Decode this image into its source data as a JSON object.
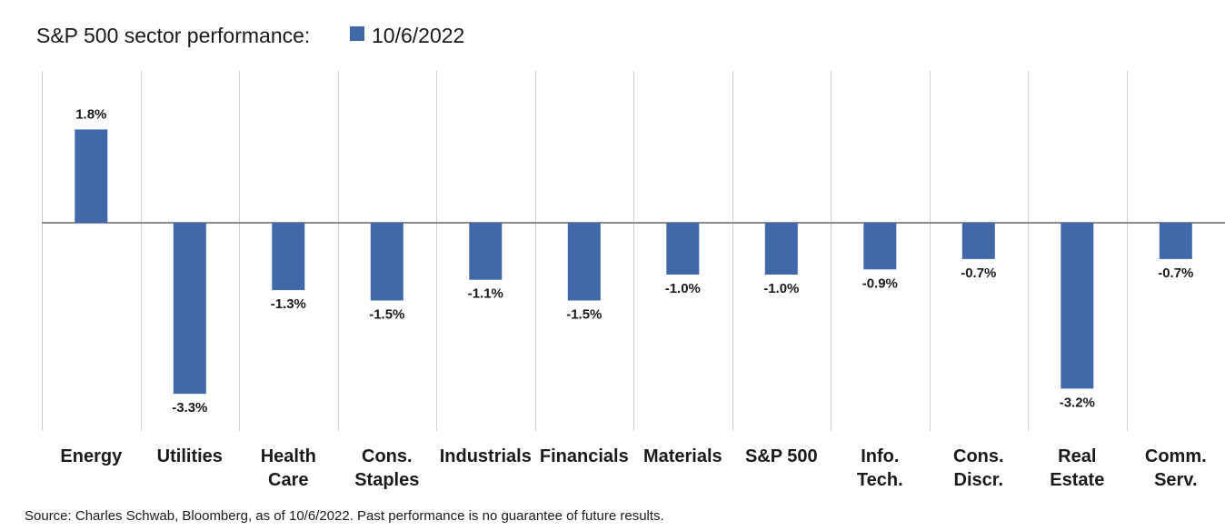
{
  "chart_data": {
    "type": "bar",
    "title": "S&P 500 sector performance:",
    "legend": {
      "label": "10/6/2022",
      "position": "top"
    },
    "series": [
      {
        "name": "10/6/2022",
        "color": "#4169A9",
        "values": [
          1.8,
          -3.3,
          -1.3,
          -1.5,
          -1.1,
          -1.5,
          -1.0,
          -1.0,
          -0.9,
          -0.7,
          -3.2,
          -0.7
        ]
      }
    ],
    "categories": [
      [
        "Energy"
      ],
      [
        "Utilities"
      ],
      [
        "Health",
        "Care"
      ],
      [
        "Cons.",
        "Staples"
      ],
      [
        "Industrials"
      ],
      [
        "Financials"
      ],
      [
        "Materials"
      ],
      [
        "S&P 500"
      ],
      [
        "Info.",
        "Tech."
      ],
      [
        "Cons.",
        "Discr."
      ],
      [
        "Real",
        "Estate"
      ],
      [
        "Comm.",
        "Serv."
      ]
    ],
    "data_labels": [
      "1.8%",
      "-3.3%",
      "-1.3%",
      "-1.5%",
      "-1.1%",
      "-1.5%",
      "-1.0%",
      "-1.0%",
      "-0.9%",
      "-0.7%",
      "-3.2%",
      "-0.7%"
    ],
    "xlabel": "",
    "ylabel": "",
    "ylim": [
      -4.0,
      3.0
    ],
    "grid": "vertical separators between categories",
    "source": "Source: Charles Schwab, Bloomberg, as of 10/6/2022.  Past performance is no guarantee of future results."
  }
}
